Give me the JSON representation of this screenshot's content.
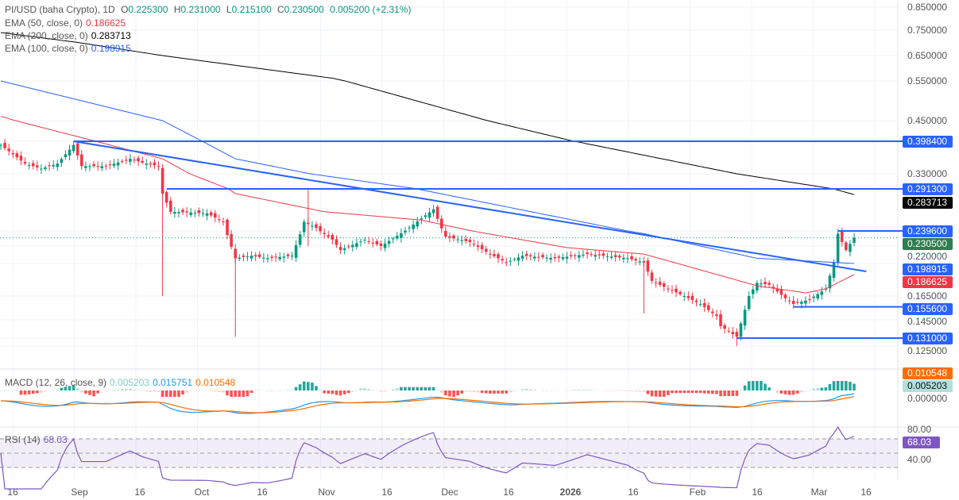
{
  "header": {
    "symbol": "PI/USD (baha Crypto), 1D",
    "o_label": "O",
    "o": "0.225300",
    "h_label": "H",
    "h": "0.231000",
    "l_label": "L",
    "l": "0.215100",
    "c_label": "C",
    "c": "0.230500",
    "change": "0.005200 (+2.31%)"
  },
  "indicators": [
    {
      "label": "EMA (50, close, 0)",
      "value": "0.186625",
      "color": "#f23645"
    },
    {
      "label": "EMA (200, close, 0)",
      "value": "0.283713",
      "color": "#000000"
    },
    {
      "label": "EMA (100, close, 0)",
      "value": "0.198915",
      "color": "#2962ff"
    }
  ],
  "macd": {
    "label": "MACD (12, 26, close, 9)",
    "hist": "0.005203",
    "macd": "0.015751",
    "signal": "0.010548",
    "hist_color": "#b2dfdb",
    "macd_color": "#2196f3",
    "signal_color": "#ff6d00",
    "axis_label": "0.000000"
  },
  "rsi": {
    "label": "RSI (14)",
    "value": "68.03",
    "color": "#7e57c2",
    "ticks": [
      "80.00",
      "40.00"
    ]
  },
  "colors": {
    "up": "#089981",
    "down": "#f23645",
    "levels": "#2962ff"
  },
  "chart_data": {
    "type": "candlestick",
    "title": "PI/USD (baha Crypto), 1D",
    "y_scale": "log",
    "y_ticks": [
      "0.850000",
      "0.750000",
      "0.650000",
      "0.550000",
      "0.450000",
      "0.330000",
      "0.220000",
      "0.165000",
      "0.145000",
      "0.125000"
    ],
    "x_ticks": [
      "16",
      "Sep",
      "16",
      "Oct",
      "16",
      "Nov",
      "16",
      "Dec",
      "16",
      "2026",
      "16",
      "Feb",
      "16",
      "Mar",
      "16"
    ],
    "close_keypoints": [
      [
        "2025-08-13",
        0.39
      ],
      [
        "2025-08-19",
        0.35
      ],
      [
        "2025-08-23",
        0.34
      ],
      [
        "2025-08-27",
        0.35
      ],
      [
        "2025-08-31",
        0.39
      ],
      [
        "2025-09-02",
        0.345
      ],
      [
        "2025-09-08",
        0.345
      ],
      [
        "2025-09-14",
        0.36
      ],
      [
        "2025-09-17",
        0.352
      ],
      [
        "2025-09-21",
        0.345
      ],
      [
        "2025-09-22",
        0.285
      ],
      [
        "2025-09-24",
        0.262
      ],
      [
        "2025-10-03",
        0.26
      ],
      [
        "2025-10-07",
        0.25
      ],
      [
        "2025-10-10",
        0.205
      ],
      [
        "2025-10-14",
        0.208
      ],
      [
        "2025-10-18",
        0.205
      ],
      [
        "2025-10-24",
        0.208
      ],
      [
        "2025-10-27",
        0.25
      ],
      [
        "2025-10-30",
        0.243
      ],
      [
        "2025-11-03",
        0.228
      ],
      [
        "2025-11-05",
        0.215
      ],
      [
        "2025-11-11",
        0.228
      ],
      [
        "2025-11-15",
        0.22
      ],
      [
        "2025-11-21",
        0.24
      ],
      [
        "2025-11-28",
        0.265
      ],
      [
        "2025-12-01",
        0.232
      ],
      [
        "2025-12-07",
        0.225
      ],
      [
        "2025-12-12",
        0.21
      ],
      [
        "2025-12-16",
        0.2
      ],
      [
        "2025-12-20",
        0.208
      ],
      [
        "2025-12-28",
        0.205
      ],
      [
        "2026-01-05",
        0.21
      ],
      [
        "2026-01-15",
        0.205
      ],
      [
        "2026-01-19",
        0.2
      ],
      [
        "2026-01-21",
        0.18
      ],
      [
        "2026-01-25",
        0.172
      ],
      [
        "2026-01-29",
        0.165
      ],
      [
        "2026-02-02",
        0.158
      ],
      [
        "2026-02-06",
        0.148
      ],
      [
        "2026-02-07",
        0.14
      ],
      [
        "2026-02-11",
        0.132
      ],
      [
        "2026-02-14",
        0.165
      ],
      [
        "2026-02-16",
        0.178
      ],
      [
        "2026-02-19",
        0.176
      ],
      [
        "2026-02-23",
        0.163
      ],
      [
        "2026-02-25",
        0.158
      ],
      [
        "2026-03-01",
        0.162
      ],
      [
        "2026-03-05",
        0.172
      ],
      [
        "2026-03-07",
        0.2
      ],
      [
        "2026-03-08",
        0.236
      ],
      [
        "2026-03-10",
        0.215
      ],
      [
        "2026-03-12",
        0.2305
      ]
    ],
    "ema200": [
      [
        "2025-08-13",
        0.74
      ],
      [
        "2025-09-01",
        0.7
      ],
      [
        "2025-11-03",
        0.56
      ],
      [
        "2026-01-01",
        0.4
      ],
      [
        "2026-02-11",
        0.33
      ],
      [
        "2026-03-12",
        0.2837
      ]
    ],
    "ema100": [
      [
        "2025-08-13",
        0.55
      ],
      [
        "2025-09-22",
        0.45
      ],
      [
        "2025-10-10",
        0.36
      ],
      [
        "2025-11-25",
        0.29
      ],
      [
        "2026-01-19",
        0.236
      ],
      [
        "2026-02-16",
        0.205
      ],
      [
        "2026-03-12",
        0.1989
      ]
    ],
    "ema50": [
      [
        "2025-08-13",
        0.46
      ],
      [
        "2025-09-22",
        0.36
      ],
      [
        "2025-10-10",
        0.285
      ],
      [
        "2025-11-01",
        0.262
      ],
      [
        "2025-11-25",
        0.252
      ],
      [
        "2025-12-31",
        0.218
      ],
      [
        "2026-01-19",
        0.21
      ],
      [
        "2026-02-16",
        0.175
      ],
      [
        "2026-02-28",
        0.168
      ],
      [
        "2026-03-05",
        0.172
      ],
      [
        "2026-03-12",
        0.1866
      ]
    ],
    "levels": [
      {
        "value": 0.3984,
        "label": "0.398400",
        "from": "2025-08-31"
      },
      {
        "value": 0.2913,
        "label": "0.291300",
        "from": "2025-09-23"
      },
      {
        "value": 0.2396,
        "label": "0.239600",
        "from": "2026-03-08"
      },
      {
        "value": 0.1556,
        "label": "0.155600",
        "from": "2026-02-25"
      },
      {
        "value": 0.131,
        "label": "0.131000",
        "from": "2026-02-11"
      }
    ],
    "trendline": [
      [
        "2025-08-31",
        0.3984
      ],
      [
        "2026-03-15",
        0.19
      ]
    ],
    "price_labels": [
      {
        "label": "0.283713",
        "color": "#000000",
        "value": 0.2837
      },
      {
        "label": "0.230500",
        "color": "#2e7d4f",
        "value": 0.2305
      },
      {
        "label": "0.198915",
        "color": "#2962ff",
        "value": 0.1989
      },
      {
        "label": "0.186625",
        "color": "#f23645",
        "value": 0.1866
      }
    ]
  }
}
